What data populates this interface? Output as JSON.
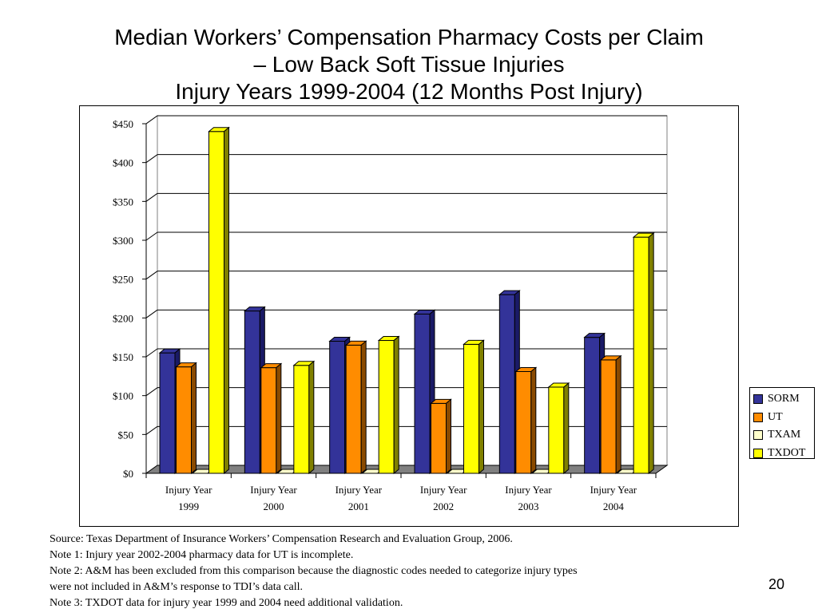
{
  "title": {
    "line1": "Median Workers’ Compensation Pharmacy Costs per Claim",
    "line2": "– Low Back Soft Tissue Injuries",
    "line3": "Injury Years 1999-2004 (12 Months Post Injury)"
  },
  "chart_data": {
    "type": "bar",
    "categories": [
      [
        "Injury Year",
        "1999"
      ],
      [
        "Injury Year",
        "2000"
      ],
      [
        "Injury Year",
        "2001"
      ],
      [
        "Injury Year",
        "2002"
      ],
      [
        "Injury Year",
        "2003"
      ],
      [
        "Injury Year",
        "2004"
      ]
    ],
    "series": [
      {
        "name": "SORM",
        "color": "#333399",
        "side": "#1a1a66",
        "values": [
          155,
          209,
          170,
          205,
          230,
          175
        ]
      },
      {
        "name": "UT",
        "color": "#ff8c00",
        "side": "#8a4a00",
        "values": [
          137,
          136,
          165,
          90,
          131,
          146
        ]
      },
      {
        "name": "TXAM",
        "color": "#ffffcc",
        "side": "#999977",
        "values": [
          0,
          0,
          0,
          0,
          0,
          0
        ]
      },
      {
        "name": "TXDOT",
        "color": "#ffff00",
        "side": "#808000",
        "values": [
          440,
          139,
          171,
          166,
          111,
          304
        ]
      }
    ],
    "yticks": [
      "$0",
      "$50",
      "$100",
      "$150",
      "$200",
      "$250",
      "$300",
      "$350",
      "$400",
      "$450"
    ],
    "ylim": [
      0,
      450
    ],
    "grid": true,
    "legend_position": "right"
  },
  "notes": [
    "Source: Texas Department of Insurance Workers’ Compensation Research and Evaluation Group, 2006.",
    "Note 1:  Injury year 2002-2004 pharmacy data for UT is incomplete.",
    "Note 2:  A&M has been excluded from this comparison because the diagnostic codes needed to categorize injury types",
    "were not included in A&M’s response to TDI’s data call.",
    "Note 3:  TXDOT data for injury year 1999 and 2004 need additional validation."
  ],
  "page_number": "20"
}
